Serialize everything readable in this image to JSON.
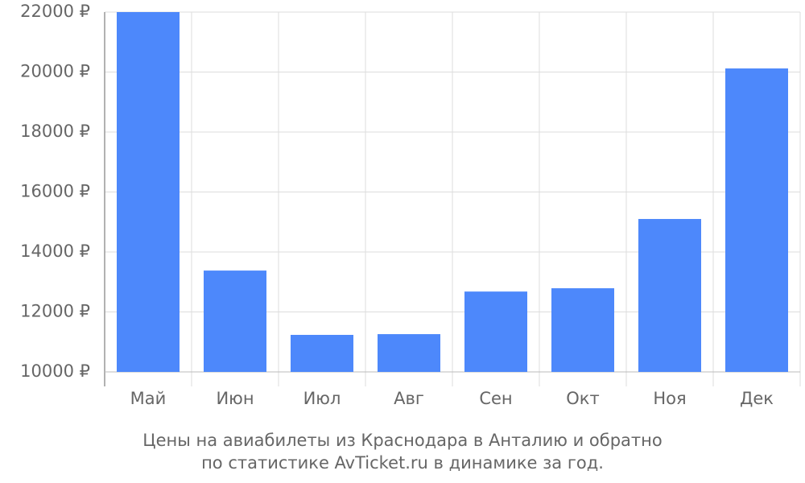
{
  "chart_data": {
    "type": "bar",
    "title": "Цены на авиабилеты из Краснодара в Анталию и обратно",
    "subtitle": "по статистике AvTicket.ru в динамике за год.",
    "categories": [
      "Май",
      "Июн",
      "Июл",
      "Авг",
      "Сен",
      "Окт",
      "Ноя",
      "Дек"
    ],
    "values": [
      22000,
      13380,
      11235,
      11260,
      12680,
      12790,
      15100,
      20120
    ],
    "color": "#4d88fb",
    "ylim": [
      10000,
      22000
    ],
    "yticks": [
      {
        "value": 10000,
        "label": "10000 ₽"
      },
      {
        "value": 12000,
        "label": "12000 ₽"
      },
      {
        "value": 14000,
        "label": "14000 ₽"
      },
      {
        "value": 16000,
        "label": "16000 ₽"
      },
      {
        "value": 18000,
        "label": "18000 ₽"
      },
      {
        "value": 20000,
        "label": "20000 ₽"
      },
      {
        "value": 22000,
        "label": "22000 ₽"
      }
    ],
    "grid": true
  }
}
